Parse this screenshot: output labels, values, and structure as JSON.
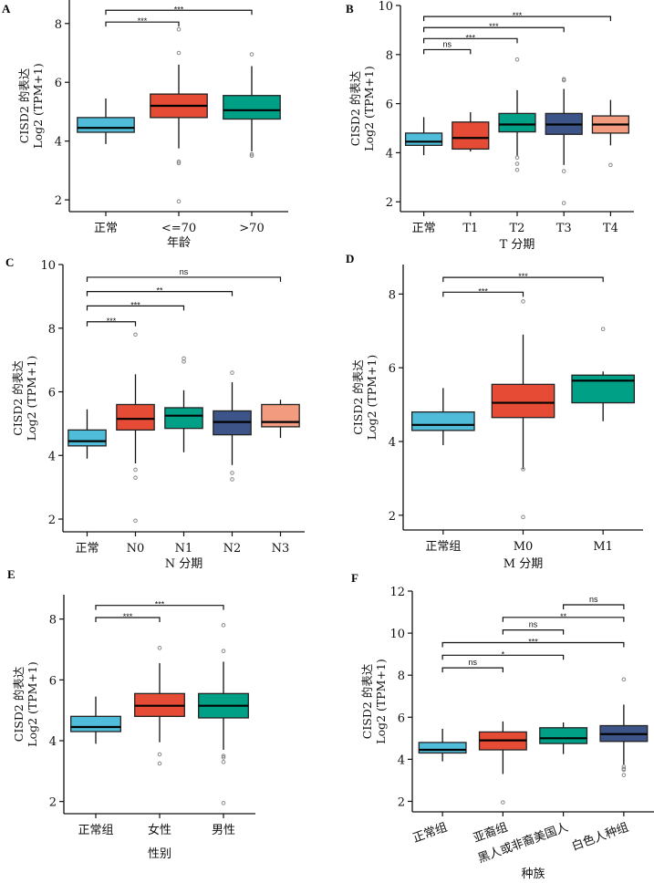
{
  "colors": {
    "normal": "#4FBCD9",
    "red": "#E64B35",
    "teal": "#00A087",
    "navy": "#3C5488",
    "salmon": "#F39B7F",
    "outlier": "#888888"
  },
  "chart_data": [
    {
      "panel": "A",
      "type": "box",
      "ylabel_line1": "CISD2 的表达",
      "ylabel_line2": "Log2 (TPM+1)",
      "xlabel": "年龄",
      "ylim": [
        1.6,
        8.8
      ],
      "yticks": [
        2,
        4,
        6,
        8
      ],
      "categories": [
        "正常",
        "<=70",
        ">70"
      ],
      "colors": [
        "normal",
        "red",
        "teal"
      ],
      "boxes": [
        {
          "min": 3.9,
          "q1": 4.3,
          "median": 4.45,
          "q3": 4.8,
          "max": 5.45,
          "outliers": []
        },
        {
          "min": 3.75,
          "q1": 4.8,
          "median": 5.2,
          "q3": 5.6,
          "max": 6.6,
          "outliers": [
            7.8,
            7.0,
            3.3,
            3.25,
            1.95
          ]
        },
        {
          "min": 3.65,
          "q1": 4.75,
          "median": 5.05,
          "q3": 5.55,
          "max": 6.55,
          "outliers": [
            6.95,
            3.55,
            3.5
          ]
        }
      ],
      "comparisons": [
        {
          "from": 0,
          "to": 1,
          "label": "***",
          "y": 8.05
        },
        {
          "from": 0,
          "to": 2,
          "label": "***",
          "y": 8.45
        }
      ]
    },
    {
      "panel": "B",
      "type": "box",
      "ylabel_line1": "CISD2 的表达",
      "ylabel_line2": "Log2 (TPM+1)",
      "xlabel": "T 分期",
      "ylim": [
        1.6,
        10.0
      ],
      "yticks": [
        2,
        4,
        6,
        8,
        10
      ],
      "categories": [
        "正常",
        "T1",
        "T2",
        "T3",
        "T4"
      ],
      "colors": [
        "normal",
        "red",
        "teal",
        "navy",
        "salmon"
      ],
      "boxes": [
        {
          "min": 3.9,
          "q1": 4.3,
          "median": 4.45,
          "q3": 4.8,
          "max": 5.45,
          "outliers": []
        },
        {
          "min": 4.05,
          "q1": 4.15,
          "median": 4.6,
          "q3": 5.25,
          "max": 5.65,
          "outliers": []
        },
        {
          "min": 3.85,
          "q1": 4.85,
          "median": 5.15,
          "q3": 5.6,
          "max": 6.55,
          "outliers": [
            7.8,
            3.8,
            3.55,
            3.3
          ]
        },
        {
          "min": 3.5,
          "q1": 4.75,
          "median": 5.15,
          "q3": 5.6,
          "max": 6.6,
          "outliers": [
            7.0,
            6.95,
            3.25,
            1.95
          ]
        },
        {
          "min": 4.3,
          "q1": 4.8,
          "median": 5.15,
          "q3": 5.5,
          "max": 6.15,
          "outliers": [
            3.5
          ]
        }
      ],
      "comparisons": [
        {
          "from": 0,
          "to": 1,
          "label": "ns",
          "y": 8.2
        },
        {
          "from": 0,
          "to": 2,
          "label": "***",
          "y": 8.65
        },
        {
          "from": 0,
          "to": 3,
          "label": "***",
          "y": 9.1
        },
        {
          "from": 0,
          "to": 4,
          "label": "***",
          "y": 9.55
        }
      ]
    },
    {
      "panel": "C",
      "type": "box",
      "ylabel_line1": "CISD2 的表达",
      "ylabel_line2": "Log2 (TPM+1)",
      "xlabel": "N 分期",
      "ylim": [
        1.6,
        10.0
      ],
      "yticks": [
        2,
        4,
        6,
        8,
        10
      ],
      "categories": [
        "正常",
        "N0",
        "N1",
        "N2",
        "N3"
      ],
      "colors": [
        "normal",
        "red",
        "teal",
        "navy",
        "salmon"
      ],
      "boxes": [
        {
          "min": 3.9,
          "q1": 4.3,
          "median": 4.45,
          "q3": 4.8,
          "max": 5.45,
          "outliers": []
        },
        {
          "min": 3.75,
          "q1": 4.8,
          "median": 5.15,
          "q3": 5.6,
          "max": 6.55,
          "outliers": [
            7.8,
            3.55,
            3.3,
            1.95
          ]
        },
        {
          "min": 4.1,
          "q1": 4.85,
          "median": 5.25,
          "q3": 5.5,
          "max": 6.05,
          "outliers": [
            7.05,
            6.95
          ]
        },
        {
          "min": 3.7,
          "q1": 4.65,
          "median": 5.05,
          "q3": 5.4,
          "max": 6.3,
          "outliers": [
            6.6,
            3.45,
            3.25
          ]
        },
        {
          "min": 4.55,
          "q1": 4.9,
          "median": 5.05,
          "q3": 5.6,
          "max": 5.75,
          "outliers": []
        }
      ],
      "comparisons": [
        {
          "from": 0,
          "to": 1,
          "label": "***",
          "y": 8.2
        },
        {
          "from": 0,
          "to": 2,
          "label": "***",
          "y": 8.7
        },
        {
          "from": 0,
          "to": 3,
          "label": "**",
          "y": 9.15
        },
        {
          "from": 0,
          "to": 4,
          "label": "ns",
          "y": 9.6
        }
      ]
    },
    {
      "panel": "D",
      "type": "box",
      "ylabel_line1": "CISD2 的表达",
      "ylabel_line2": "Log2 (TPM+1)",
      "xlabel": "M 分期",
      "ylim": [
        1.6,
        8.8
      ],
      "yticks": [
        2,
        4,
        6,
        8
      ],
      "categories": [
        "正常组",
        "M0",
        "M1"
      ],
      "colors": [
        "normal",
        "red",
        "teal"
      ],
      "boxes": [
        {
          "min": 3.9,
          "q1": 4.3,
          "median": 4.45,
          "q3": 4.8,
          "max": 5.45,
          "outliers": []
        },
        {
          "min": 3.25,
          "q1": 4.65,
          "median": 5.05,
          "q3": 5.55,
          "max": 6.9,
          "outliers": [
            7.8,
            3.25,
            1.95
          ]
        },
        {
          "min": 4.55,
          "q1": 5.05,
          "median": 5.65,
          "q3": 5.8,
          "max": 5.9,
          "outliers": [
            7.05
          ]
        }
      ],
      "comparisons": [
        {
          "from": 0,
          "to": 1,
          "label": "***",
          "y": 8.05
        },
        {
          "from": 0,
          "to": 2,
          "label": "***",
          "y": 8.45
        }
      ]
    },
    {
      "panel": "E",
      "type": "box",
      "ylabel_line1": "CISD2 的表达",
      "ylabel_line2": "Log2 (TPM+1)",
      "xlabel": "性别",
      "ylim": [
        1.6,
        8.8
      ],
      "yticks": [
        2,
        4,
        6,
        8
      ],
      "categories": [
        "正常组",
        "女性",
        "男性"
      ],
      "colors": [
        "normal",
        "red",
        "teal"
      ],
      "boxes": [
        {
          "min": 3.9,
          "q1": 4.3,
          "median": 4.45,
          "q3": 4.8,
          "max": 5.45,
          "outliers": []
        },
        {
          "min": 3.95,
          "q1": 4.8,
          "median": 5.15,
          "q3": 5.55,
          "max": 6.55,
          "outliers": [
            7.05,
            3.55,
            3.25
          ]
        },
        {
          "min": 3.7,
          "q1": 4.75,
          "median": 5.15,
          "q3": 5.55,
          "max": 6.6,
          "outliers": [
            7.8,
            6.95,
            3.5,
            3.45,
            3.3,
            1.95
          ]
        }
      ],
      "comparisons": [
        {
          "from": 0,
          "to": 1,
          "label": "***",
          "y": 8.05
        },
        {
          "from": 0,
          "to": 2,
          "label": "***",
          "y": 8.45
        }
      ]
    },
    {
      "panel": "F",
      "type": "box",
      "ylabel_line1": "CISD2 的表达",
      "ylabel_line2": "Log2 (TPM+1)",
      "xlabel": "种族",
      "ylim": [
        1.5,
        12.0
      ],
      "yticks": [
        2,
        4,
        6,
        8,
        10,
        12
      ],
      "categories": [
        "正常组",
        "亚裔组",
        "黑人或非裔美国人",
        "白色人种组"
      ],
      "colors": [
        "normal",
        "red",
        "teal",
        "navy"
      ],
      "boxes": [
        {
          "min": 3.9,
          "q1": 4.3,
          "median": 4.45,
          "q3": 4.8,
          "max": 5.45,
          "outliers": []
        },
        {
          "min": 3.3,
          "q1": 4.45,
          "median": 4.9,
          "q3": 5.3,
          "max": 5.8,
          "outliers": [
            1.95
          ]
        },
        {
          "min": 4.25,
          "q1": 4.75,
          "median": 5.0,
          "q3": 5.5,
          "max": 5.75,
          "outliers": []
        },
        {
          "min": 3.75,
          "q1": 4.85,
          "median": 5.2,
          "q3": 5.6,
          "max": 6.6,
          "outliers": [
            7.8,
            3.65,
            3.55,
            3.5,
            3.25
          ]
        }
      ],
      "comparisons": [
        {
          "from": 0,
          "to": 1,
          "label": "ns",
          "y": 8.35
        },
        {
          "from": 0,
          "to": 2,
          "label": "*",
          "y": 8.95
        },
        {
          "from": 0,
          "to": 3,
          "label": "***",
          "y": 9.55
        },
        {
          "from": 1,
          "to": 2,
          "label": "ns",
          "y": 10.15
        },
        {
          "from": 1,
          "to": 3,
          "label": "**",
          "y": 10.75
        },
        {
          "from": 2,
          "to": 3,
          "label": "ns",
          "y": 11.35
        }
      ],
      "rotated_xticks": true
    }
  ]
}
